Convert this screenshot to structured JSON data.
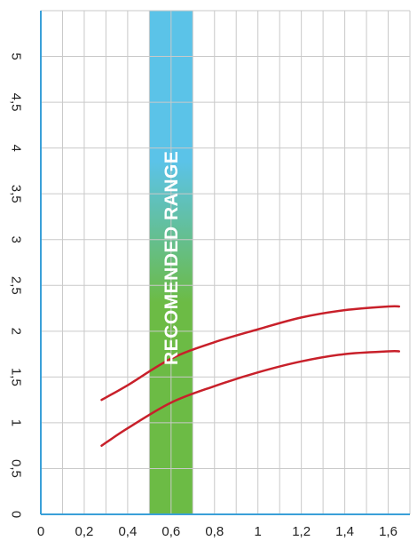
{
  "chart_data": {
    "type": "line",
    "title": "",
    "xlabel": "",
    "ylabel": "",
    "xlim": [
      0,
      1.7
    ],
    "ylim": [
      0,
      5.5
    ],
    "x_ticks": [
      0,
      0.2,
      0.4,
      0.6,
      0.8,
      1.0,
      1.2,
      1.4,
      1.6
    ],
    "x_tick_labels": [
      "0",
      "0,2",
      "0,4",
      "0,6",
      "0,8",
      "1",
      "1,2",
      "1,4",
      "1,6"
    ],
    "y_ticks": [
      0,
      0.5,
      1,
      1.5,
      2,
      2.5,
      3,
      3.5,
      4,
      4.5,
      5
    ],
    "y_tick_labels": [
      "0",
      "0,5",
      "1",
      "1,5",
      "2",
      "2,5",
      "3",
      "3,5",
      "4",
      "4,5",
      "5"
    ],
    "y_tick_label_rotation": "90° clockwise",
    "grid": true,
    "band": {
      "label": "RECOMENDED RANGE",
      "x_range": [
        0.5,
        0.7
      ],
      "colors": [
        "#5bc3e8",
        "#6cbb45"
      ]
    },
    "series": [
      {
        "color": "#c8202a",
        "x": [
          0.28,
          0.4,
          0.6,
          0.8,
          1.0,
          1.2,
          1.4,
          1.6,
          1.65
        ],
        "y": [
          1.25,
          1.41,
          1.7,
          1.88,
          2.02,
          2.15,
          2.23,
          2.27,
          2.27
        ]
      },
      {
        "color": "#c8202a",
        "x": [
          0.28,
          0.4,
          0.6,
          0.8,
          1.0,
          1.2,
          1.4,
          1.6,
          1.65
        ],
        "y": [
          0.75,
          0.94,
          1.22,
          1.4,
          1.55,
          1.67,
          1.75,
          1.78,
          1.78
        ]
      }
    ]
  }
}
